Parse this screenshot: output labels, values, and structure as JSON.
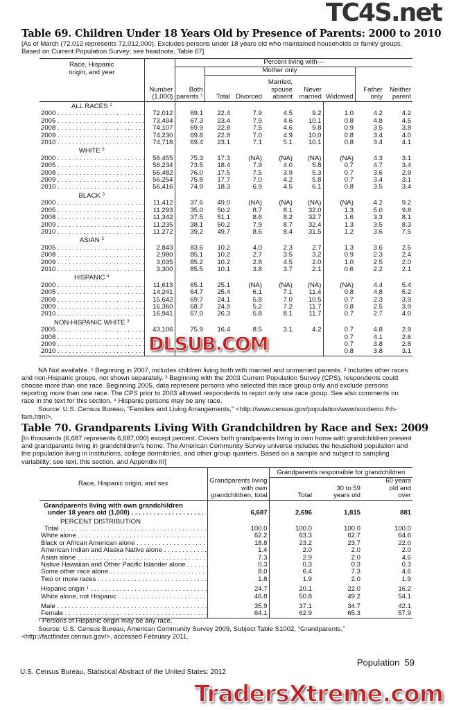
{
  "watermarks": {
    "top": "TC4S.net",
    "middle": "DLSUB.COM",
    "bottom": "TradersXtreme.com"
  },
  "t69": {
    "title": "Table 69. Children Under 18 Years Old by Presence of Parents: 2000 to 2010",
    "headnote": "[As of March (72,012 represents 72,012,000). Excludes persons under 18 years old who maintained households or family groups. Based on Current Population Survey; see headnote, Table 67]",
    "headers": {
      "stub": "Race, Hispanic origin, and year",
      "number": "Number (1,000)",
      "percent": "Percent living with—",
      "both": "Both parents",
      "both_fn": "1",
      "mother": "Mother only",
      "total": "Total",
      "divorced": "Divorced",
      "married": "Married, spouse absent",
      "never": "Never married",
      "widowed": "Widowed",
      "father": "Father only",
      "neither": "Neither parent"
    },
    "groups": [
      {
        "label": "ALL RACES",
        "fn": "2",
        "rows": [
          [
            "2000",
            "72,012",
            "69.1",
            "22.4",
            "7.9",
            "4.5",
            "9.2",
            "1.0",
            "4.2",
            "4.2"
          ],
          [
            "2005",
            "73,494",
            "67.3",
            "23.4",
            "7.9",
            "4.6",
            "10.1",
            "0.8",
            "4.8",
            "4.5"
          ],
          [
            "2008",
            "74,107",
            "69.9",
            "22.8",
            "7.5",
            "4.6",
            "9.8",
            "0.9",
            "3.5",
            "3.8"
          ],
          [
            "2009",
            "74,230",
            "69.8",
            "22.8",
            "7.0",
            "4.9",
            "10.0",
            "0.8",
            "3.4",
            "4.0"
          ],
          [
            "2010",
            "74,718",
            "69.4",
            "23.1",
            "7.1",
            "5.1",
            "10.1",
            "0.8",
            "3.4",
            "4.1"
          ]
        ]
      },
      {
        "label": "WHITE",
        "fn": "3",
        "rows": [
          [
            "2000",
            "56,455",
            "75.3",
            "17.3",
            "(NA)",
            "(NA)",
            "(NA)",
            "(NA)",
            "4.3",
            "3.1"
          ],
          [
            "2005",
            "56,234",
            "73.5",
            "18.4",
            "7.9",
            "4.0",
            "5.8",
            "0.7",
            "4.7",
            "3.4"
          ],
          [
            "2008",
            "56,482",
            "76.0",
            "17.5",
            "7.5",
            "3.9",
            "5.3",
            "0.7",
            "3.6",
            "2.9"
          ],
          [
            "2009",
            "56,254",
            "75.8",
            "17.7",
            "7.0",
            "4.2",
            "5.8",
            "0.7",
            "3.4",
            "3.1"
          ],
          [
            "2010",
            "56,416",
            "74.9",
            "18.3",
            "6.9",
            "4.5",
            "6.1",
            "0.8",
            "3.5",
            "3.4"
          ]
        ]
      },
      {
        "label": "BLACK",
        "fn": "3",
        "rows": [
          [
            "2000",
            "11,412",
            "37.6",
            "49.0",
            "(NA)",
            "(NA)",
            "(NA)",
            "(NA)",
            "4.2",
            "9.2"
          ],
          [
            "2005",
            "11,293",
            "35.0",
            "50.2",
            "8.7",
            "8.1",
            "32.0",
            "1.3",
            "5.0",
            "9.8"
          ],
          [
            "2008",
            "11,342",
            "37.5",
            "51.1",
            "8.6",
            "8.2",
            "32.7",
            "1.6",
            "3.3",
            "8.1"
          ],
          [
            "2009",
            "11,235",
            "38.1",
            "50.2",
            "7.9",
            "8.7",
            "32.4",
            "1.3",
            "3.5",
            "8.3"
          ],
          [
            "2010",
            "11,272",
            "39.2",
            "49.7",
            "8.6",
            "8.4",
            "31.5",
            "1.2",
            "3.6",
            "7.5"
          ]
        ]
      },
      {
        "label": "ASIAN",
        "fn": "3",
        "rows": [
          [
            "2005",
            "2,843",
            "83.6",
            "10.2",
            "4.0",
            "2.3",
            "2.7",
            "1.3",
            "3.6",
            "2.5"
          ],
          [
            "2008",
            "2,980",
            "85.1",
            "10.2",
            "2.7",
            "3.5",
            "3.2",
            "0.9",
            "2.3",
            "2.4"
          ],
          [
            "2009",
            "3,035",
            "85.2",
            "10.2",
            "2.8",
            "4.5",
            "2.0",
            "1.0",
            "2.5",
            "2.0"
          ],
          [
            "2010",
            "3,300",
            "85.5",
            "10.1",
            "3.8",
            "3.7",
            "2.1",
            "0.6",
            "2.2",
            "2.1"
          ]
        ]
      },
      {
        "label": "HISPANIC",
        "fn": "4",
        "rows": [
          [
            "2000",
            "11,613",
            "65.1",
            "25.1",
            "(NA)",
            "(NA)",
            "(NA)",
            "(NA)",
            "4.4",
            "5.4"
          ],
          [
            "2005",
            "14,241",
            "64.7",
            "25.4",
            "6.1",
            "7.1",
            "11.4",
            "0.8",
            "4.8",
            "5.2"
          ],
          [
            "2008",
            "15,642",
            "69.7",
            "24.1",
            "5.8",
            "7.0",
            "10.5",
            "0.7",
            "2.3",
            "3.9"
          ],
          [
            "2009",
            "16,360",
            "68.7",
            "24.9",
            "5.2",
            "7.2",
            "11.7",
            "0.8",
            "2.5",
            "3.9"
          ],
          [
            "2010",
            "16,941",
            "67.0",
            "26.3",
            "5.8",
            "8.1",
            "11.7",
            "0.7",
            "2.7",
            "4.0"
          ]
        ]
      },
      {
        "label": "NON-HISPANIC WHITE",
        "fn": "3",
        "rows": [
          [
            "2005",
            "43,106",
            "75.9",
            "16.4",
            "8.5",
            "3.1",
            "4.2",
            "0.7",
            "4.8",
            "2.9"
          ],
          [
            "2008",
            "",
            "",
            "",
            "",
            "",
            "",
            "0.7",
            "4.1",
            "2.6"
          ],
          [
            "2009",
            "",
            "",
            "",
            "",
            "",
            "",
            "0.7",
            "3.8",
            "2.8"
          ],
          [
            "2010",
            "",
            "",
            "",
            "",
            "",
            "",
            "0.8",
            "3.8",
            "3.1"
          ]
        ]
      }
    ],
    "footnotes": "NA Not available. ¹ Beginning in 2007, includes children living both with married and unmarried parents. ² Includes other races and non-Hispanic groups, not shown separately. ³ Beginning with the 2003 Current Population Survey (CPS), respondents could choose more than one race. Beginning 2005, data represent persons who selected this race group only and exclude persons reporting more than one race. The CPS prior to 2003 allowed respondents to report only one race group. See also comments on race in the text for this section. ⁴ Hispanic persons may be any race.",
    "source": "Source: U.S. Census Bureau, \"Families and Living Arrangements,\" <http://www.census.gov/population/www/socdemo /hh-fam.html>."
  },
  "t70": {
    "title": "Table 70. Grandparents Living With Grandchildren by Race and Sex: 2009",
    "headnote": "[In thousands (6,687 represents 6,687,000) except percent. Covers both grandparents living in own home with grandchildren present and grandparents living in grandchildren's home. The American Community Survey universe includes the household population and the population living in institutions, college dormitories, and other group quarters. Based on a sample and subject to sampling variability; see text, this section, and Appendix III]",
    "headers": {
      "stub": "Race, Hispanic origin, and sex",
      "living": "Grandparents living with own grandchildren, total",
      "responsible": "Grandparents responsible for grandchildren",
      "total": "Total",
      "age30": "30 to 59 years old",
      "age60": "60 years old and over"
    },
    "summary": {
      "label1": "Grandparents living with own grandchildren",
      "label2": "under 18 years old (1,000)",
      "values": [
        "6,687",
        "2,696",
        "1,815",
        "881"
      ]
    },
    "section": "PERCENT DISTRIBUTION",
    "blocks": [
      [
        [
          "Total",
          "100.0",
          "100.0",
          "100.0",
          "100.0"
        ],
        [
          "White alone",
          "62.2",
          "63.3",
          "62.7",
          "64.6"
        ],
        [
          "Black or African American alone",
          "18.8",
          "23.2",
          "23.7",
          "22.0"
        ],
        [
          "American Indian and Alaska Native alone",
          "1.4",
          "2.0",
          "2.0",
          "2.0"
        ],
        [
          "Asian alone",
          "7.3",
          "2.9",
          "2.0",
          "4.6"
        ],
        [
          "Native Hawaiian and Other Pacific Islander alone",
          "0.3",
          "0.3",
          "0.3",
          "0.3"
        ],
        [
          "Some other race alone",
          "8.0",
          "6.4",
          "7.3",
          "4.6"
        ],
        [
          "Two or more races",
          "1.8",
          "1.9",
          "2.0",
          "1.9"
        ]
      ],
      [
        [
          "Hispanic origin ¹",
          "24.7",
          "20.1",
          "22.0",
          "16.2"
        ],
        [
          "White alone, not Hispanic",
          "46.8",
          "50.8",
          "49.2",
          "54.1"
        ]
      ],
      [
        [
          "Male",
          "35.9",
          "37.1",
          "34.7",
          "42.1"
        ],
        [
          "Female",
          "64.1",
          "62.9",
          "65.3",
          "57.9"
        ]
      ]
    ],
    "footnote": "¹ Persons of Hispanic origin may be any race.",
    "source": "Source: U.S. Census Bureau, American Community Survey 2009, Subject Table S1002, “Grandparents,” <http://factfinder.census.gov/>, accessed February 2011."
  },
  "footer": {
    "left": "U.S. Census Bureau, Statistical Abstract of the United States: 2012",
    "right": "Population  59"
  }
}
